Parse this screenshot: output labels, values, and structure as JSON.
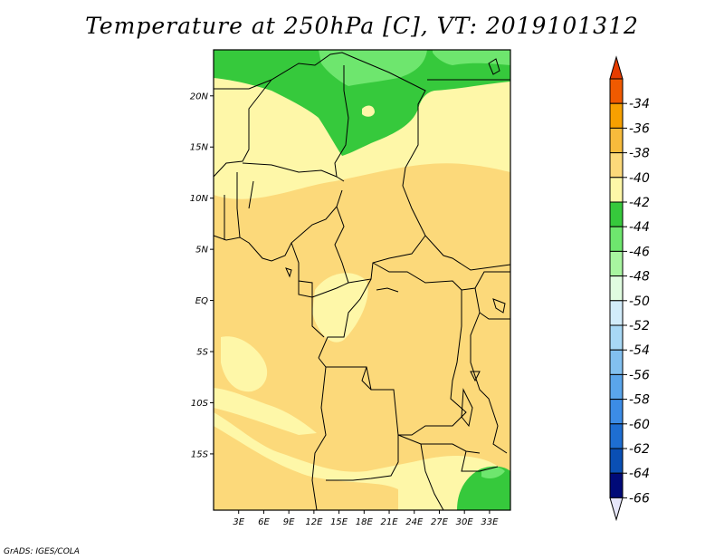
{
  "title": "Temperature at 250hPa [C], VT: 2019101312",
  "credit": "GrADS: IGES/COLA",
  "map": {
    "lon_range": [
      0,
      35.5
    ],
    "lat_range": [
      -20.5,
      24.5
    ],
    "lat_ticks": [
      {
        "label": "20N",
        "value": 20
      },
      {
        "label": "15N",
        "value": 15
      },
      {
        "label": "10N",
        "value": 10
      },
      {
        "label": "5N",
        "value": 5
      },
      {
        "label": "EQ",
        "value": 0
      },
      {
        "label": "5S",
        "value": -5
      },
      {
        "label": "10S",
        "value": -10
      },
      {
        "label": "15S",
        "value": -15
      }
    ],
    "lon_ticks": [
      {
        "label": "3E",
        "value": 3
      },
      {
        "label": "6E",
        "value": 6
      },
      {
        "label": "9E",
        "value": 9
      },
      {
        "label": "12E",
        "value": 12
      },
      {
        "label": "15E",
        "value": 15
      },
      {
        "label": "18E",
        "value": 18
      },
      {
        "label": "21E",
        "value": 21
      },
      {
        "label": "24E",
        "value": 24
      },
      {
        "label": "27E",
        "value": 27
      },
      {
        "label": "30E",
        "value": 30
      },
      {
        "label": "33E",
        "value": 33
      }
    ]
  },
  "colorbar": {
    "top_color": "#e63c00",
    "bottom_color": "#e6e6fa",
    "levels": [
      {
        "label": "-34",
        "color": "#f05a00"
      },
      {
        "label": "-36",
        "color": "#f7a000"
      },
      {
        "label": "-38",
        "color": "#f7bb3c"
      },
      {
        "label": "-40",
        "color": "#fcd97a"
      },
      {
        "label": "-42",
        "color": "#fef7a8"
      },
      {
        "label": "-44",
        "color": "#36c93c"
      },
      {
        "label": "-46",
        "color": "#6ee66e"
      },
      {
        "label": "-48",
        "color": "#a8f5a0"
      },
      {
        "label": "-50",
        "color": "#e0fce0"
      },
      {
        "label": "-52",
        "color": "#d2ecfa"
      },
      {
        "label": "-54",
        "color": "#a8d8f5"
      },
      {
        "label": "-56",
        "color": "#82c0f0"
      },
      {
        "label": "-58",
        "color": "#5aa5eb"
      },
      {
        "label": "-60",
        "color": "#3c8ce6"
      },
      {
        "label": "-62",
        "color": "#1e6ed2"
      },
      {
        "label": "-64",
        "color": "#0a4fb4"
      },
      {
        "label": "-66",
        "color": "#000a78"
      }
    ]
  }
}
